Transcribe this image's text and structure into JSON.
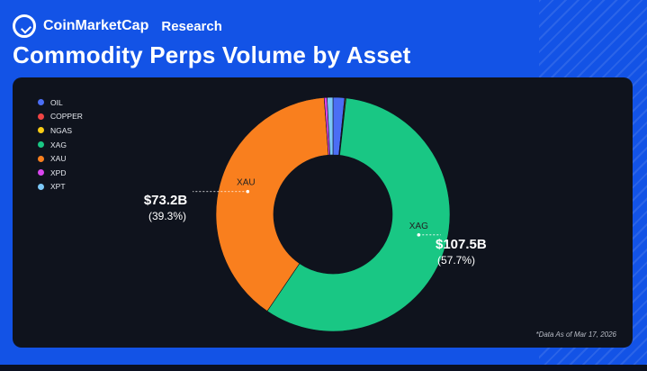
{
  "header": {
    "brand": "CoinMarketCap",
    "section": "Research",
    "title": "Commodity Perps Volume by Asset"
  },
  "colors": {
    "OIL": "#4b6ef5",
    "COPPER": "#ef4444",
    "NGAS": "#facc15",
    "XAG": "#19c784",
    "XAU": "#f97f1e",
    "XPD": "#d946ef",
    "XPT": "#7cc8f8"
  },
  "chart_data": {
    "type": "pie",
    "title": "Commodity Perps Volume by Asset",
    "legend": [
      "OIL",
      "COPPER",
      "NGAS",
      "XAG",
      "XAU",
      "XPD",
      "XPT"
    ],
    "legend_position": "top-left",
    "slices": [
      {
        "name": "OIL",
        "percent": 1.6
      },
      {
        "name": "COPPER",
        "percent": 0.1
      },
      {
        "name": "NGAS",
        "percent": 0.1
      },
      {
        "name": "XAG",
        "percent": 57.7
      },
      {
        "name": "XAU",
        "percent": 39.3
      },
      {
        "name": "XPD",
        "percent": 0.4
      },
      {
        "name": "XPT",
        "percent": 0.8
      }
    ],
    "annotations": [
      {
        "name": "XAG",
        "value": "$107.5B",
        "percent_label": "(57.7%)"
      },
      {
        "name": "XAU",
        "value": "$73.2B",
        "percent_label": "(39.3%)"
      }
    ],
    "footnote": "*Data As of Mar 17, 2026"
  }
}
